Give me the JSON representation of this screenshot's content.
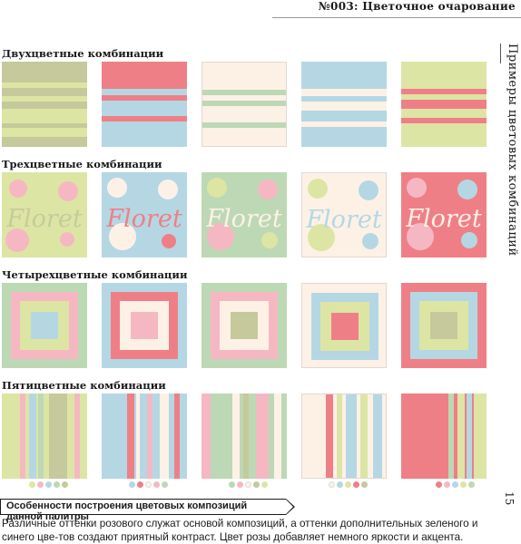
{
  "header": {
    "title": "№003: Цветочное очарование"
  },
  "sidebar": {
    "text": "Примеры цветовых комбинаций"
  },
  "page_number": "15",
  "colors": {
    "pink": "#f5b8c3",
    "coral": "#ef7f86",
    "green": "#bdd8b4",
    "olive": "#c5c99b",
    "lime": "#dde5a4",
    "blue": "#b5d7e4",
    "cream": "#fdf1e6"
  },
  "sections": [
    {
      "title": "Двухцветные комбинации"
    },
    {
      "title": "Трехцветные комбинации"
    },
    {
      "title": "Четырехцветные комбинации"
    },
    {
      "title": "Пятицветные комбинации"
    }
  ],
  "floret_label": "Floret",
  "callout": {
    "text": "Особенности построения цветовых композиций данной палитры"
  },
  "body_text": "Различные оттенки розового служат основой композиций, а оттенки дополнительных зеленого и синего цве-тов создают приятный контраст. Цвет розы добавляет немного яркости и акцента."
}
